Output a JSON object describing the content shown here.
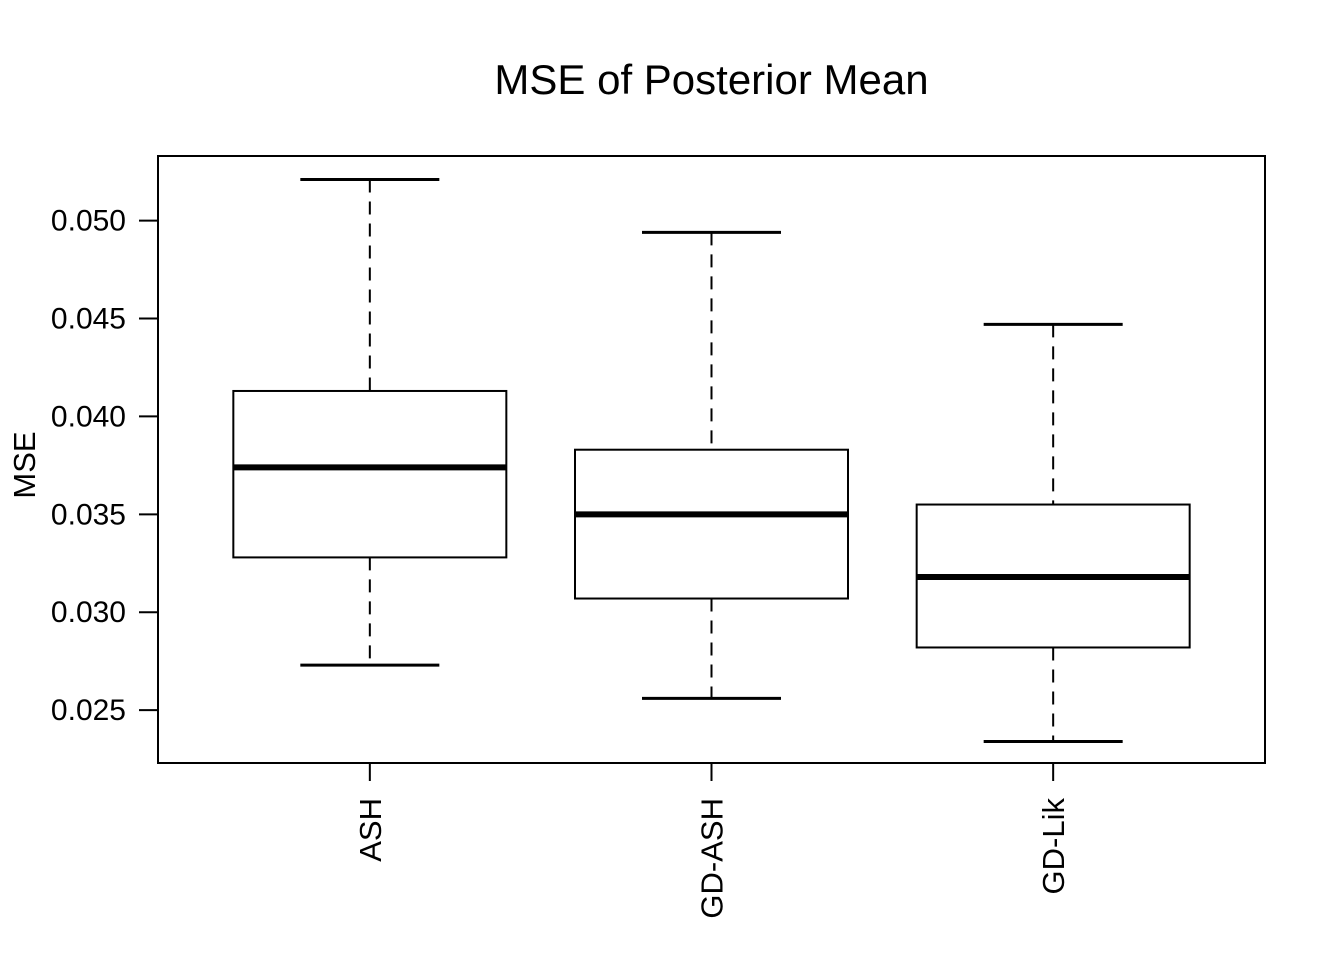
{
  "figure": {
    "background_color": "#ffffff",
    "line_color": "#000000"
  },
  "chart_data": {
    "type": "boxplot",
    "title": "MSE of Posterior Mean",
    "xlabel": "",
    "ylabel": "MSE",
    "categories": [
      "ASH",
      "GD-ASH",
      "GD-Lik"
    ],
    "y_ticks": [
      0.025,
      0.03,
      0.035,
      0.04,
      0.045,
      0.05
    ],
    "y_tick_labels": [
      "0.025",
      "0.030",
      "0.035",
      "0.040",
      "0.045",
      "0.050"
    ],
    "ylim": [
      0.0223,
      0.0533
    ],
    "xlim": [
      0.38,
      3.62
    ],
    "grid": false,
    "legend": "none",
    "orientation": "vertical",
    "x_tick_label_rotation_deg": 90,
    "series": [
      {
        "name": "ASH",
        "whisker_low": 0.0273,
        "q1": 0.0328,
        "median": 0.0374,
        "q3": 0.0413,
        "whisker_high": 0.0521,
        "outliers": []
      },
      {
        "name": "GD-ASH",
        "whisker_low": 0.0256,
        "q1": 0.0307,
        "median": 0.035,
        "q3": 0.0383,
        "whisker_high": 0.0494,
        "outliers": []
      },
      {
        "name": "GD-Lik",
        "whisker_low": 0.0234,
        "q1": 0.0282,
        "median": 0.0318,
        "q3": 0.0355,
        "whisker_high": 0.0447,
        "outliers": []
      }
    ],
    "style": {
      "box_fill": "none",
      "stroke_color": "#000000",
      "whisker_style": "dashed",
      "median_color": "#000000"
    }
  }
}
